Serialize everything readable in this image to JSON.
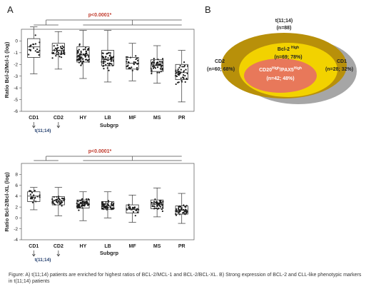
{
  "panel_a_label": "A",
  "panel_b_label": "B",
  "chart_data": [
    {
      "type": "box",
      "ylabel": "Ratio Bcl-2/Mcl-1 (log)",
      "xlabel": "Subgrp",
      "ylim": [
        -6,
        1
      ],
      "yticks": [
        -6,
        -5,
        -4,
        -3,
        -2,
        -1,
        0
      ],
      "categories": [
        "CD1",
        "CD2",
        "HY",
        "LB",
        "MF",
        "MS",
        "PR"
      ],
      "boxes": [
        {
          "q1": -1.4,
          "median": -0.5,
          "q3": 0.2,
          "whisker_low": -2.8,
          "whisker_high": 1.2
        },
        {
          "q1": -1.1,
          "median": -0.8,
          "q3": -0.2,
          "whisker_low": -2.4,
          "whisker_high": 0.8
        },
        {
          "q1": -1.8,
          "median": -1.2,
          "q3": -0.5,
          "whisker_low": -3.2,
          "whisker_high": 0.9
        },
        {
          "q1": -2.1,
          "median": -1.6,
          "q3": -0.8,
          "whisker_low": -3.5,
          "whisker_high": 0.9
        },
        {
          "q1": -2.4,
          "median": -1.9,
          "q3": -1.4,
          "whisker_low": -3.4,
          "whisker_high": -0.2
        },
        {
          "q1": -2.6,
          "median": -2.1,
          "q3": -1.6,
          "whisker_low": -3.6,
          "whisker_high": -0.4
        },
        {
          "q1": -3.3,
          "median": -2.7,
          "q3": -2.0,
          "whisker_low": -5.2,
          "whisker_high": -0.8
        }
      ],
      "annotation": "p<0.0001*",
      "arrow_label": "t(11;14)"
    },
    {
      "type": "box",
      "ylabel": "Ratio Bcl-2/Bcl-XL (log)",
      "xlabel": "Subgrp",
      "ylim": [
        -4,
        10
      ],
      "yticks": [
        -4,
        -2,
        0,
        2,
        4,
        6,
        8
      ],
      "categories": [
        "CD1",
        "CD2",
        "HY",
        "LB",
        "MF",
        "MS",
        "PR"
      ],
      "boxes": [
        {
          "q1": 3.0,
          "median": 4.0,
          "q3": 4.8,
          "whisker_low": 1.5,
          "whisker_high": 5.6
        },
        {
          "q1": 2.4,
          "median": 3.2,
          "q3": 3.9,
          "whisker_low": 0.4,
          "whisker_high": 5.6
        },
        {
          "q1": 1.8,
          "median": 2.6,
          "q3": 3.3,
          "whisker_low": -0.5,
          "whisker_high": 4.8
        },
        {
          "q1": 1.6,
          "median": 2.2,
          "q3": 3.0,
          "whisker_low": 0.0,
          "whisker_high": 4.8
        },
        {
          "q1": 0.9,
          "median": 1.6,
          "q3": 2.4,
          "whisker_low": -0.8,
          "whisker_high": 4.2
        },
        {
          "q1": 1.7,
          "median": 2.5,
          "q3": 3.3,
          "whisker_low": 0.2,
          "whisker_high": 5.5
        },
        {
          "q1": 0.7,
          "median": 1.4,
          "q3": 2.2,
          "whisker_low": -1.0,
          "whisker_high": 4.5
        }
      ],
      "annotation": "p<0.0001*",
      "arrow_label": "t(11;14)"
    }
  ],
  "venn": {
    "title": "t(11;14)",
    "total": "(n=88)",
    "cd2_name": "CD2",
    "cd2_count": "(n=60; 68%)",
    "cd1_name": "CD1",
    "cd1_count": "(n=28; 32%)",
    "bcl2_name": "Bcl-2",
    "bcl2_sup": "High",
    "bcl2_count": "(n=69; 78%)",
    "cd20_name_a": "CD20",
    "cd20_sup_a": "High",
    "cd20_name_b": "/PAX5",
    "cd20_sup_b": "High",
    "cd20_count": "(n=42; 48%)",
    "colors": {
      "cd2": "#b8900a",
      "cd1": "#a6a6a6",
      "bcl2": "#f2d200",
      "cd20": "#e8785a"
    }
  },
  "caption": "Figure: A) t(11;14) patients are enriched for highest ratios of BCL-2/MCL-1 and BCL-2/BCL-XL. B) Strong expression of BCL-2 and CLL-like phenotypic markers in t(11;14) patients"
}
